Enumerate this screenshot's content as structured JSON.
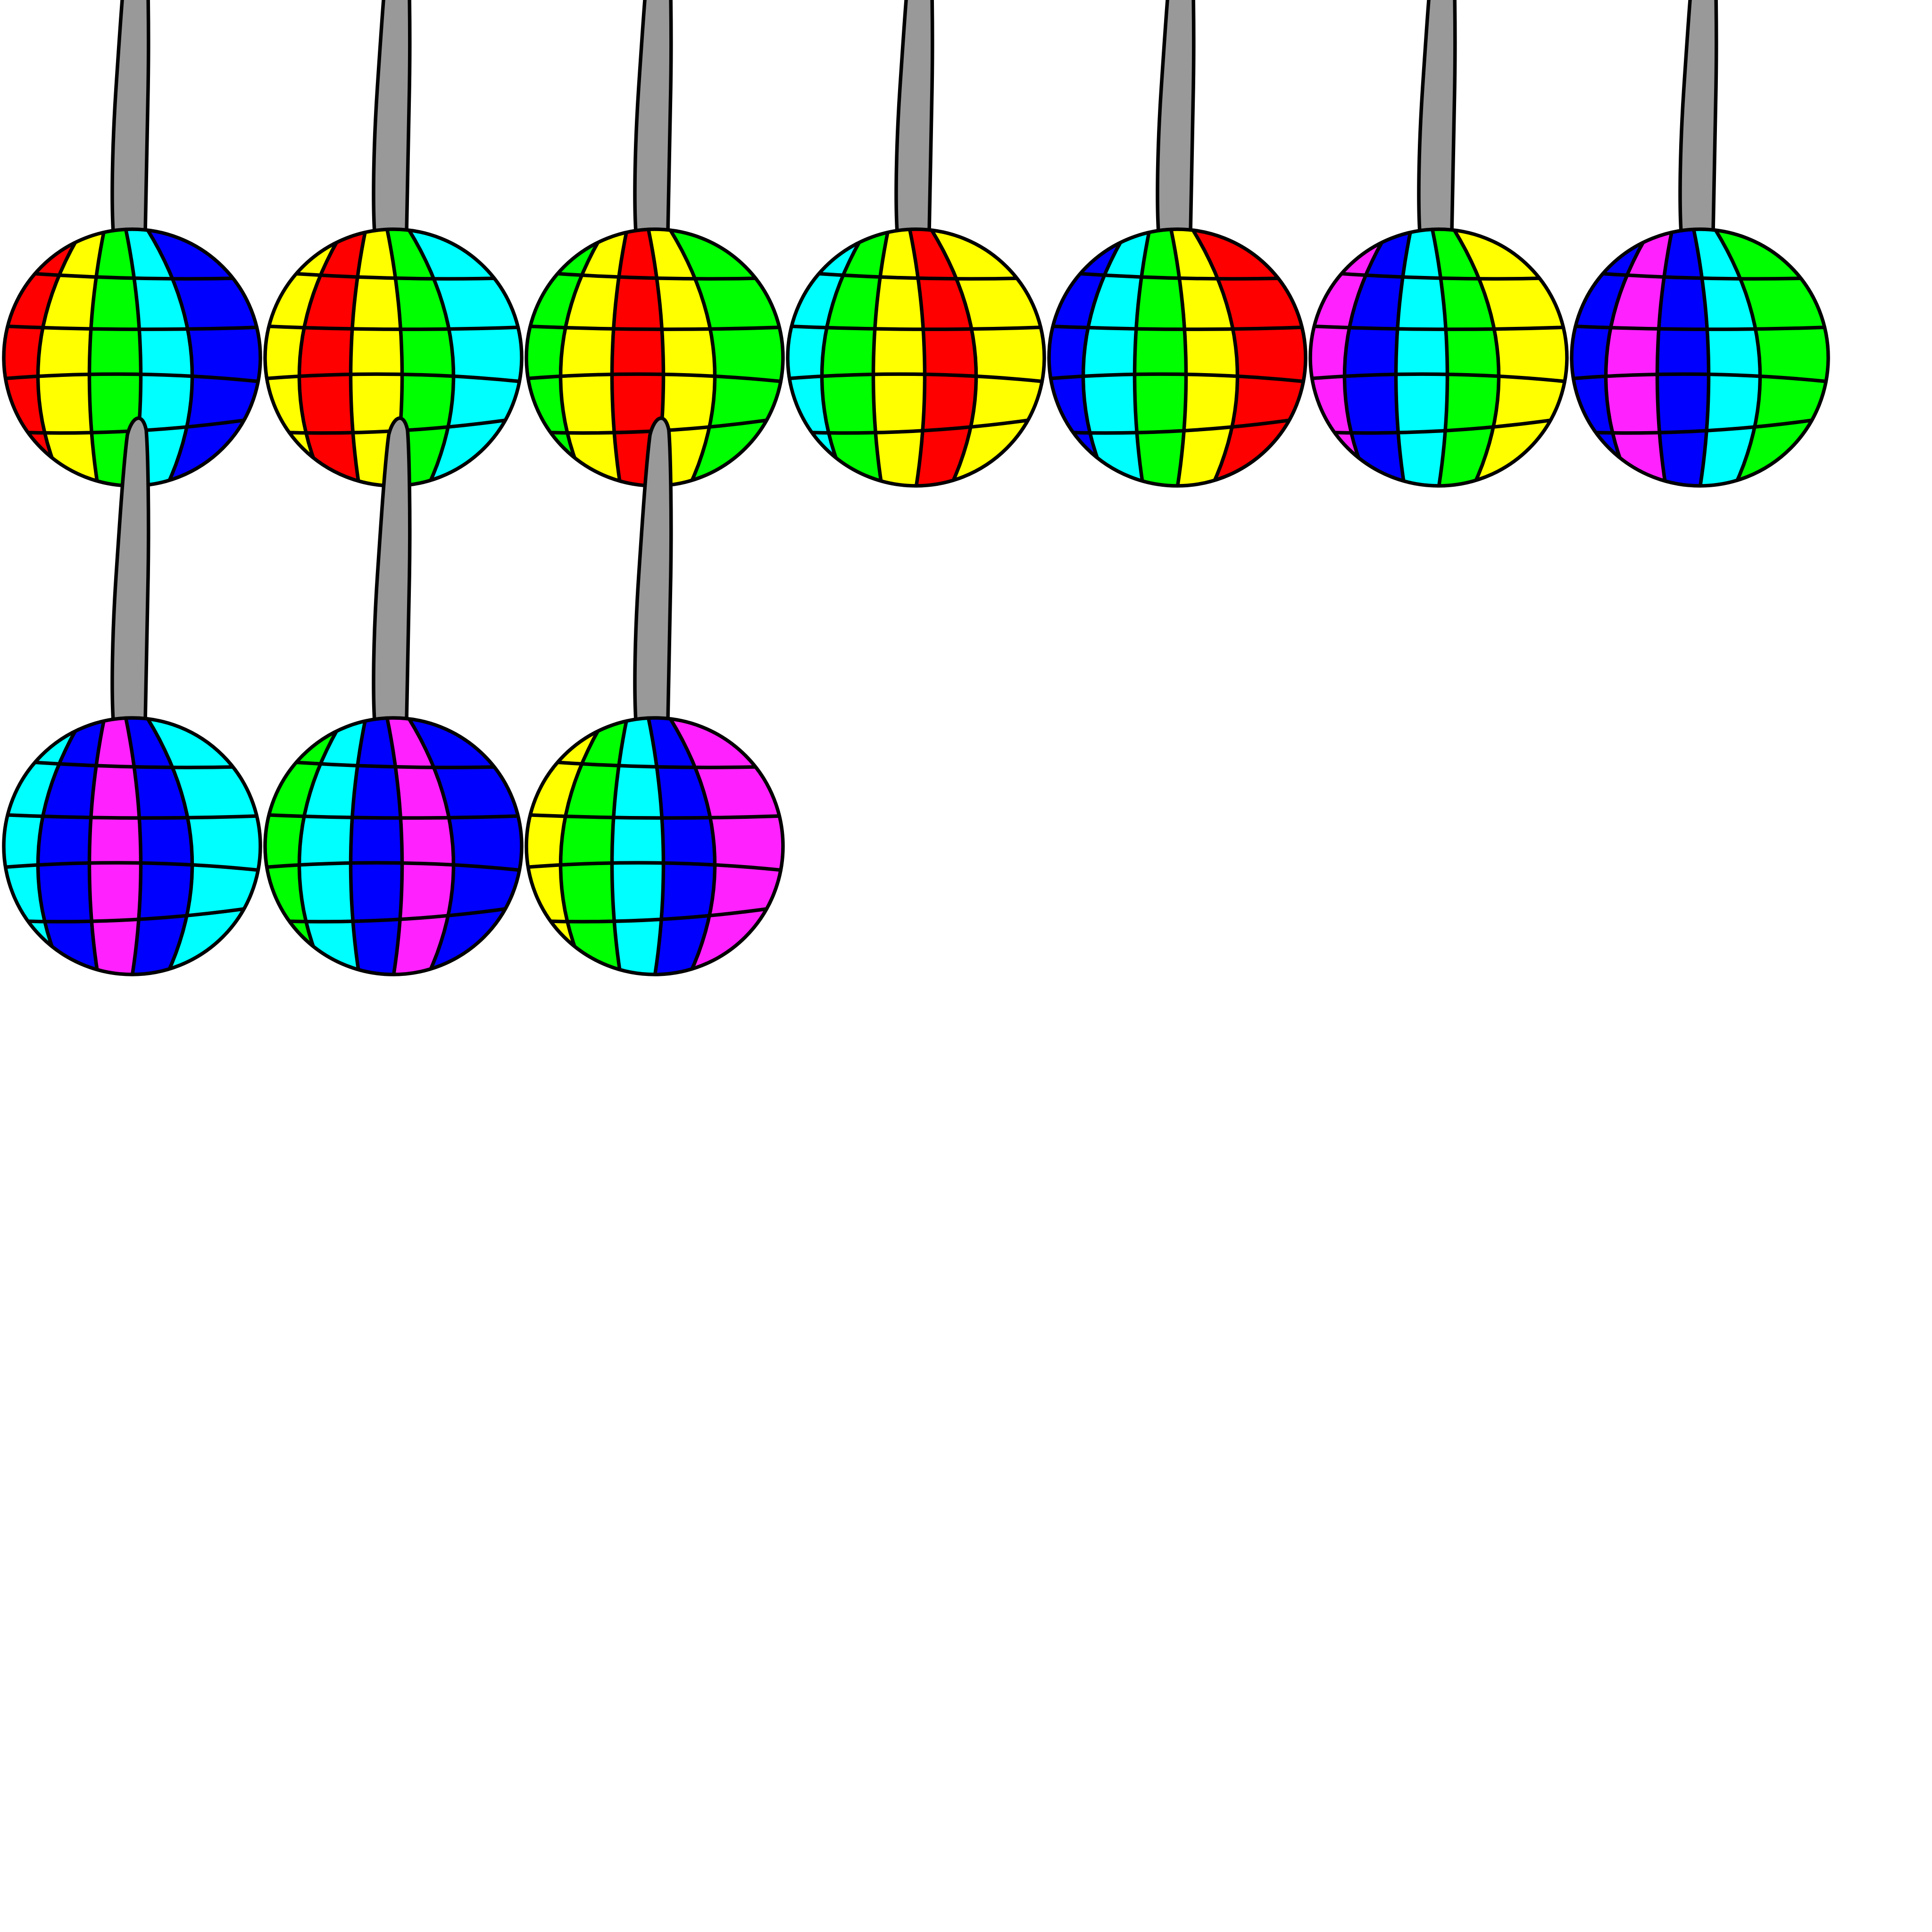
{
  "canvas": {
    "background": "#ffffff"
  },
  "style": {
    "outline": "#000000",
    "stem_fill": "#999999"
  },
  "palette": {
    "red": "#ff0000",
    "yellow": "#ffff00",
    "green": "#00ff00",
    "cyan": "#00ffff",
    "blue": "#0000ff",
    "magenta": "#ff22ff"
  },
  "balls": [
    {
      "name": "disco-ball-1",
      "stripes": [
        "red",
        "yellow",
        "green",
        "cyan",
        "blue"
      ]
    },
    {
      "name": "disco-ball-2",
      "stripes": [
        "yellow",
        "red",
        "yellow",
        "green",
        "cyan"
      ]
    },
    {
      "name": "disco-ball-3",
      "stripes": [
        "green",
        "yellow",
        "red",
        "yellow",
        "green"
      ]
    },
    {
      "name": "disco-ball-4",
      "stripes": [
        "cyan",
        "green",
        "yellow",
        "red",
        "yellow"
      ]
    },
    {
      "name": "disco-ball-5",
      "stripes": [
        "blue",
        "cyan",
        "green",
        "yellow",
        "red"
      ]
    },
    {
      "name": "disco-ball-6",
      "stripes": [
        "magenta",
        "blue",
        "cyan",
        "green",
        "yellow"
      ]
    },
    {
      "name": "disco-ball-7",
      "stripes": [
        "blue",
        "magenta",
        "blue",
        "cyan",
        "green"
      ]
    },
    {
      "name": "disco-ball-8",
      "stripes": [
        "cyan",
        "blue",
        "magenta",
        "blue",
        "cyan"
      ]
    },
    {
      "name": "disco-ball-9",
      "stripes": [
        "green",
        "cyan",
        "blue",
        "magenta",
        "blue"
      ]
    },
    {
      "name": "disco-ball-10",
      "stripes": [
        "yellow",
        "green",
        "cyan",
        "blue",
        "magenta"
      ]
    }
  ]
}
